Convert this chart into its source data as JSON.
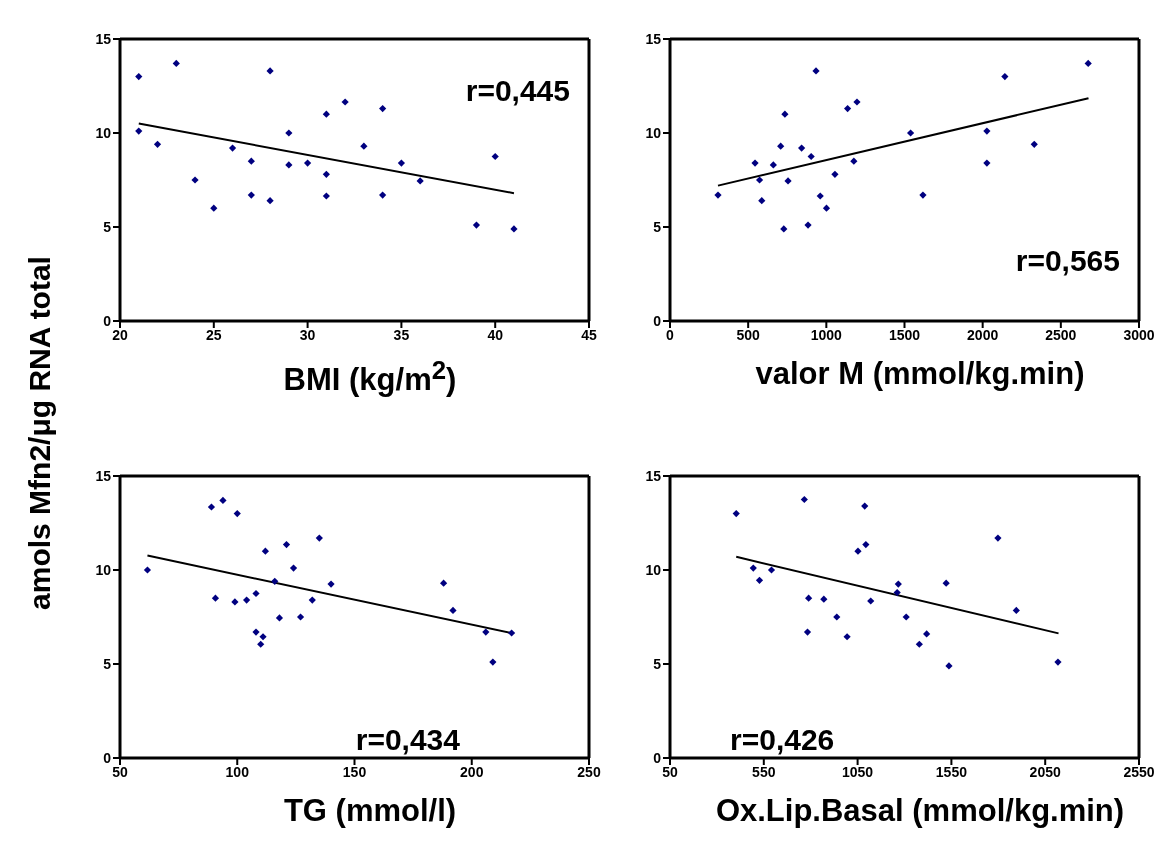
{
  "chart_data": [
    {
      "type": "scatter",
      "ylabel": "amols Mfn2/μg RNA total",
      "xlabel": "BMI (kg/m$^{2}$)",
      "annotations": [
        "r=0,445"
      ],
      "xlim": [
        20,
        45
      ],
      "xticks": [
        20,
        25,
        30,
        35,
        40,
        45
      ],
      "ylim": [
        0,
        15
      ],
      "yticks": [
        0,
        5,
        10,
        15
      ],
      "marker": "diamond",
      "series": [
        {
          "color": "#000080",
          "x": [
            21,
            21,
            22,
            23,
            24,
            25,
            26,
            27,
            27,
            28,
            28,
            29,
            29,
            30,
            31,
            31,
            31,
            32,
            33,
            34,
            34,
            35,
            36,
            39,
            40,
            41
          ],
          "values": [
            13.0,
            10.1,
            9.4,
            13.7,
            7.5,
            6.0,
            9.2,
            8.5,
            6.7,
            13.3,
            6.4,
            10.0,
            8.3,
            8.4,
            11.0,
            7.8,
            6.65,
            11.65,
            9.3,
            11.3,
            6.7,
            8.4,
            7.45,
            5.1,
            8.75,
            4.9
          ]
        },
        {
          "type": "line",
          "color": "#000000",
          "marker": "none",
          "x": [
            21,
            41
          ],
          "values": [
            10.5,
            6.8
          ]
        }
      ]
    },
    {
      "type": "scatter",
      "xlabel": "valor M (mmol/kg.min)",
      "annotations": [
        "r=0,565"
      ],
      "xlim": [
        0,
        3000
      ],
      "xticks": [
        0,
        500,
        1000,
        1500,
        2000,
        2500,
        3000
      ],
      "ylim": [
        0,
        15
      ],
      "yticks": [
        0,
        5,
        10,
        15
      ],
      "marker": "diamond",
      "series": [
        {
          "color": "#000080",
          "x": [
            307,
            544,
            573,
            587,
            661,
            708,
            728,
            735,
            755,
            842,
            883,
            903,
            934,
            961,
            1001,
            1055,
            1136,
            1176,
            1196,
            1539,
            1618,
            2027,
            2027,
            2142,
            2330,
            2675
          ],
          "values": [
            6.7,
            8.4,
            7.5,
            6.4,
            8.3,
            9.3,
            4.9,
            11.0,
            7.45,
            9.2,
            5.1,
            8.75,
            13.3,
            6.65,
            6.0,
            7.8,
            11.3,
            8.5,
            11.65,
            10.0,
            6.7,
            10.1,
            8.4,
            13.0,
            9.4,
            13.7
          ]
        },
        {
          "type": "line",
          "color": "#000000",
          "marker": "none",
          "x": [
            307,
            2677
          ],
          "values": [
            7.2,
            11.85
          ]
        }
      ]
    },
    {
      "type": "scatter",
      "xlabel": "TG (mmol/l)",
      "annotations": [
        "r=0,434"
      ],
      "xlim": [
        50,
        250
      ],
      "xticks": [
        50,
        100,
        150,
        200,
        250
      ],
      "ylim": [
        0,
        15
      ],
      "yticks": [
        0,
        5,
        10,
        15
      ],
      "marker": "diamond",
      "series": [
        {
          "color": "#000080",
          "x": [
            61.7,
            89,
            90.7,
            93.9,
            99,
            100,
            104,
            108,
            108,
            110,
            111,
            112,
            116,
            118,
            121,
            124,
            127,
            132,
            135,
            140,
            188,
            192,
            206,
            209,
            217
          ],
          "values": [
            10.0,
            13.35,
            8.5,
            13.7,
            8.3,
            13.0,
            8.4,
            8.75,
            6.7,
            6.05,
            6.45,
            11.0,
            9.4,
            7.45,
            11.35,
            10.1,
            7.5,
            8.4,
            11.7,
            9.25,
            9.3,
            7.85,
            6.7,
            5.1,
            6.65
          ]
        },
        {
          "type": "line",
          "color": "#000000",
          "marker": "none",
          "x": [
            61.7,
            217
          ],
          "values": [
            10.77,
            6.64
          ]
        }
      ]
    },
    {
      "type": "scatter",
      "xlabel": "Ox.Lip.Basal (mmol/kg.min)",
      "annotations": [
        "r=0,426"
      ],
      "xlim": [
        50,
        2550
      ],
      "xticks": [
        50,
        550,
        1050,
        1550,
        2050,
        2550
      ],
      "ylim": [
        0,
        15
      ],
      "yticks": [
        0,
        5,
        10,
        15
      ],
      "marker": "diamond",
      "series": [
        {
          "color": "#000080",
          "x": [
            403,
            494,
            527,
            591,
            766,
            783,
            789,
            870,
            939,
            994,
            1052,
            1088,
            1094,
            1120,
            1261,
            1267,
            1309,
            1379,
            1418,
            1522,
            1537,
            1798,
            1896,
            2118
          ],
          "values": [
            13.0,
            10.1,
            9.45,
            10.0,
            13.75,
            6.7,
            8.5,
            8.45,
            7.5,
            6.45,
            11.0,
            13.4,
            11.35,
            8.35,
            8.8,
            9.25,
            7.5,
            6.05,
            6.6,
            9.3,
            4.9,
            11.7,
            7.85,
            5.1
          ]
        },
        {
          "type": "line",
          "color": "#000000",
          "marker": "none",
          "x": [
            403,
            2121
          ],
          "values": [
            10.7,
            6.63
          ]
        }
      ]
    }
  ]
}
